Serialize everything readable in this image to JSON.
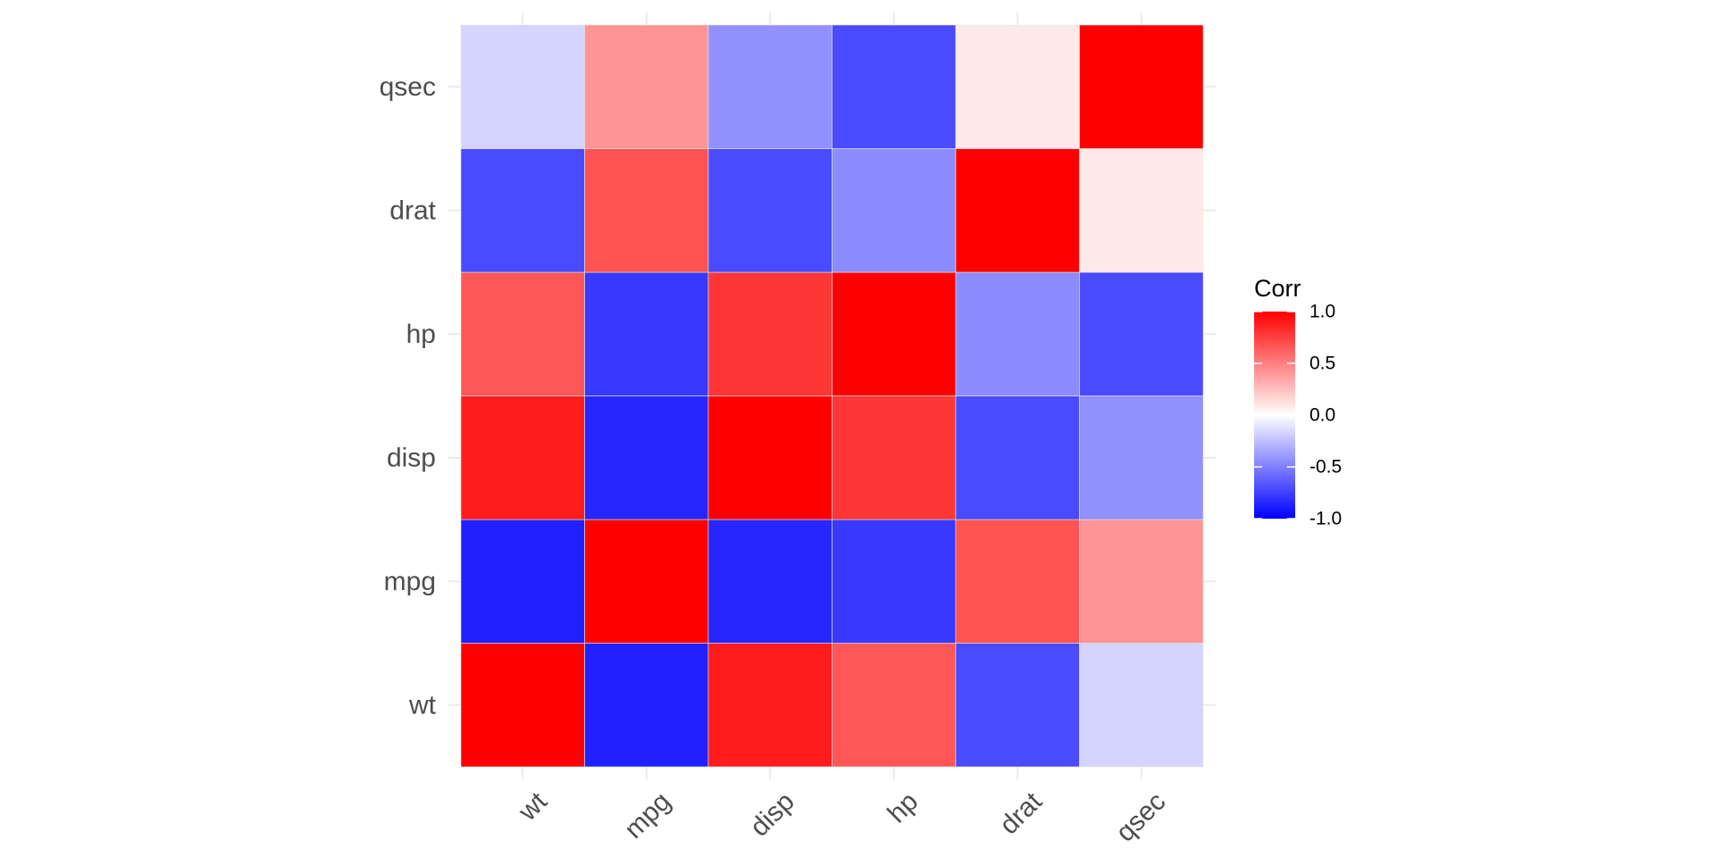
{
  "chart_data": {
    "type": "heatmap",
    "x_categories": [
      "wt",
      "mpg",
      "disp",
      "hp",
      "drat",
      "qsec"
    ],
    "y_categories": [
      "wt",
      "mpg",
      "disp",
      "hp",
      "drat",
      "qsec"
    ],
    "values": [
      [
        1.0,
        -0.87,
        0.89,
        0.66,
        -0.71,
        -0.17
      ],
      [
        -0.87,
        1.0,
        -0.85,
        -0.78,
        0.68,
        0.42
      ],
      [
        0.89,
        -0.85,
        1.0,
        0.79,
        -0.71,
        -0.43
      ],
      [
        0.66,
        -0.78,
        0.79,
        1.0,
        -0.45,
        -0.71
      ],
      [
        -0.71,
        0.68,
        -0.71,
        -0.45,
        1.0,
        0.09
      ],
      [
        -0.17,
        0.42,
        -0.43,
        -0.71,
        0.09,
        1.0
      ]
    ],
    "color_scale": {
      "low": "#0000FF",
      "mid": "#FFFFFF",
      "high": "#FF0000",
      "limits": [
        -1,
        1
      ],
      "breaks": [
        1.0,
        0.5,
        0.0,
        -0.5,
        -1.0
      ],
      "break_labels": [
        "1.0",
        "0.5",
        "0.0",
        "-0.5",
        "-1.0"
      ]
    },
    "legend": {
      "title": "Corr",
      "position": "right"
    },
    "grid": true
  }
}
